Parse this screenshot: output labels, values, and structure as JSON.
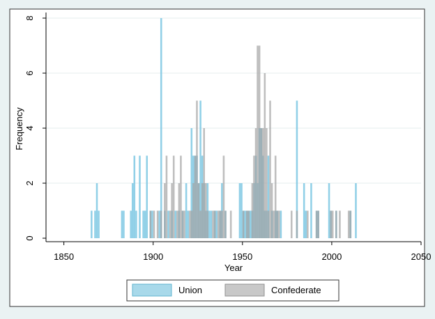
{
  "chart_data": {
    "type": "bar",
    "xlabel": "Year",
    "ylabel": "Frequency",
    "xlim": [
      1840,
      2050
    ],
    "ylim": [
      0,
      8
    ],
    "xticks": [
      1850,
      1900,
      1950,
      2000,
      2050
    ],
    "yticks": [
      0,
      2,
      4,
      6,
      8
    ],
    "bin_width": 1,
    "grid": true,
    "legend_position": "bottom",
    "series": [
      {
        "name": "Union",
        "color": "#7ec8e3",
        "points": [
          [
            1865,
            1
          ],
          [
            1867,
            1
          ],
          [
            1868,
            2
          ],
          [
            1869,
            1
          ],
          [
            1882,
            1
          ],
          [
            1883,
            1
          ],
          [
            1887,
            1
          ],
          [
            1888,
            2
          ],
          [
            1889,
            3
          ],
          [
            1890,
            1
          ],
          [
            1892,
            3
          ],
          [
            1894,
            1
          ],
          [
            1895,
            1
          ],
          [
            1896,
            3
          ],
          [
            1898,
            1
          ],
          [
            1899,
            1
          ],
          [
            1903,
            1
          ],
          [
            1904,
            8
          ],
          [
            1906,
            1
          ],
          [
            1908,
            1
          ],
          [
            1910,
            1
          ],
          [
            1912,
            1
          ],
          [
            1914,
            1
          ],
          [
            1916,
            1
          ],
          [
            1918,
            2
          ],
          [
            1919,
            1
          ],
          [
            1921,
            4
          ],
          [
            1922,
            3
          ],
          [
            1923,
            3
          ],
          [
            1924,
            3
          ],
          [
            1925,
            2
          ],
          [
            1926,
            5
          ],
          [
            1927,
            3
          ],
          [
            1928,
            2
          ],
          [
            1929,
            1
          ],
          [
            1930,
            2
          ],
          [
            1931,
            1
          ],
          [
            1932,
            1
          ],
          [
            1934,
            1
          ],
          [
            1935,
            1
          ],
          [
            1937,
            1
          ],
          [
            1938,
            2
          ],
          [
            1940,
            1
          ],
          [
            1948,
            2
          ],
          [
            1949,
            2
          ],
          [
            1950,
            1
          ],
          [
            1951,
            1
          ],
          [
            1952,
            1
          ],
          [
            1953,
            1
          ],
          [
            1954,
            1
          ],
          [
            1955,
            1
          ],
          [
            1956,
            2
          ],
          [
            1957,
            3
          ],
          [
            1958,
            2
          ],
          [
            1959,
            4
          ],
          [
            1960,
            4
          ],
          [
            1961,
            3
          ],
          [
            1962,
            1
          ],
          [
            1963,
            1
          ],
          [
            1964,
            3
          ],
          [
            1966,
            1
          ],
          [
            1968,
            1
          ],
          [
            1969,
            1
          ],
          [
            1971,
            1
          ],
          [
            1980,
            5
          ],
          [
            1984,
            2
          ],
          [
            1985,
            1
          ],
          [
            1988,
            2
          ],
          [
            1991,
            1
          ],
          [
            1992,
            1
          ],
          [
            1998,
            2
          ],
          [
            1999,
            1
          ],
          [
            2002,
            1
          ],
          [
            2010,
            1
          ],
          [
            2013,
            2
          ]
        ]
      },
      {
        "name": "Confederate",
        "color": "#a2a2a2",
        "points": [
          [
            1898,
            1
          ],
          [
            1900,
            1
          ],
          [
            1902,
            1
          ],
          [
            1904,
            1
          ],
          [
            1906,
            2
          ],
          [
            1907,
            3
          ],
          [
            1909,
            1
          ],
          [
            1910,
            2
          ],
          [
            1911,
            3
          ],
          [
            1913,
            1
          ],
          [
            1914,
            2
          ],
          [
            1915,
            3
          ],
          [
            1916,
            1
          ],
          [
            1917,
            1
          ],
          [
            1920,
            1
          ],
          [
            1921,
            1
          ],
          [
            1922,
            2
          ],
          [
            1923,
            3
          ],
          [
            1924,
            5
          ],
          [
            1925,
            2
          ],
          [
            1926,
            1
          ],
          [
            1927,
            2
          ],
          [
            1928,
            4
          ],
          [
            1929,
            2
          ],
          [
            1930,
            1
          ],
          [
            1933,
            1
          ],
          [
            1934,
            1
          ],
          [
            1936,
            1
          ],
          [
            1937,
            1
          ],
          [
            1938,
            1
          ],
          [
            1939,
            3
          ],
          [
            1940,
            1
          ],
          [
            1943,
            1
          ],
          [
            1950,
            1
          ],
          [
            1952,
            1
          ],
          [
            1953,
            1
          ],
          [
            1955,
            2
          ],
          [
            1956,
            3
          ],
          [
            1957,
            4
          ],
          [
            1958,
            7
          ],
          [
            1959,
            7
          ],
          [
            1960,
            4
          ],
          [
            1961,
            4
          ],
          [
            1962,
            6
          ],
          [
            1963,
            4
          ],
          [
            1964,
            1
          ],
          [
            1965,
            5
          ],
          [
            1966,
            2
          ],
          [
            1967,
            1
          ],
          [
            1968,
            3
          ],
          [
            1969,
            1
          ],
          [
            1970,
            1
          ],
          [
            1977,
            1
          ],
          [
            1980,
            1
          ],
          [
            1986,
            1
          ],
          [
            1991,
            1
          ],
          [
            1992,
            1
          ],
          [
            1999,
            1
          ],
          [
            2000,
            1
          ],
          [
            2002,
            1
          ],
          [
            2004,
            1
          ],
          [
            2009,
            1
          ],
          [
            2010,
            1
          ]
        ]
      }
    ]
  }
}
